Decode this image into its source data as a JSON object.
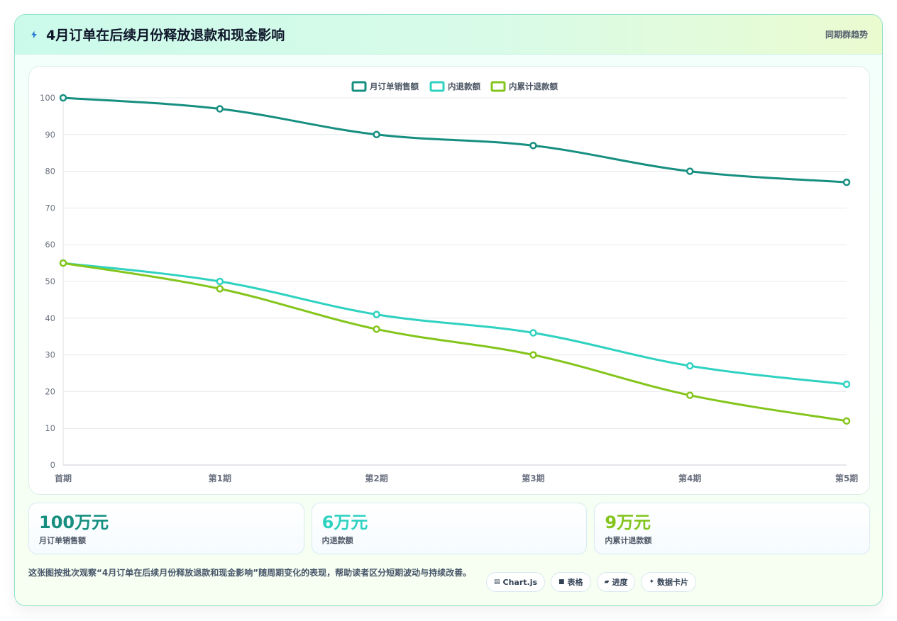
{
  "header": {
    "icon": "bolt-icon",
    "title": "4月订单在后续月份释放退款和现金影响",
    "tag": "同期群趋势"
  },
  "chart_data": {
    "type": "line",
    "categories": [
      "首期",
      "第1期",
      "第2期",
      "第3期",
      "第4期",
      "第5期"
    ],
    "series": [
      {
        "name": "月订单销售额",
        "values": [
          100,
          97,
          90,
          87,
          80,
          77
        ],
        "color": "#168f80"
      },
      {
        "name": "内退款额",
        "values": [
          55,
          50,
          41,
          36,
          27,
          22
        ],
        "color": "#2fd2c0"
      },
      {
        "name": "内累计退款额",
        "values": [
          55,
          48,
          37,
          30,
          19,
          12
        ],
        "color": "#84c51c"
      }
    ],
    "ylim": [
      0,
      100
    ],
    "yticks": [
      0,
      10,
      20,
      30,
      40,
      50,
      60,
      70,
      80,
      90,
      100
    ],
    "legend": "top-center",
    "grid": true
  },
  "stats": [
    {
      "value": "100万元",
      "label": "月订单销售额",
      "color": "#168f80"
    },
    {
      "value": "6万元",
      "label": "内退款额",
      "color": "#2fd2c0"
    },
    {
      "value": "9万元",
      "label": "内累计退款额",
      "color": "#84c51c"
    }
  ],
  "footer": {
    "note": "这张图按批次观察“4月订单在后续月份释放退款和现金影响”随周期变化的表现，帮助读者区分短期波动与持续改善。",
    "chips": [
      {
        "label": "Chart.js",
        "icon": "▤"
      },
      {
        "label": "表格",
        "icon": "■"
      },
      {
        "label": "进度",
        "icon": "▰"
      },
      {
        "label": "数据卡片",
        "icon": "✦"
      }
    ]
  }
}
